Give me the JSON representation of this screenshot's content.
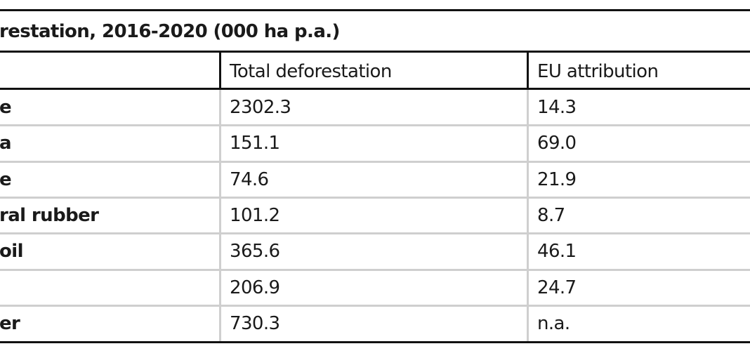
{
  "table": {
    "title": "restation, 2016-2020 (000 ha p.a.)",
    "header": [
      "Total deforestation",
      "EU attribution"
    ],
    "rows": [
      {
        "label": "e",
        "cells": [
          "2302.3",
          "14.3"
        ]
      },
      {
        "label": "a",
        "cells": [
          "151.1",
          "69.0"
        ]
      },
      {
        "label": "e",
        "cells": [
          "74.6",
          "21.9"
        ]
      },
      {
        "label": "ral rubber",
        "cells": [
          "101.2",
          "8.7"
        ]
      },
      {
        "label": "oil",
        "cells": [
          "365.6",
          "46.1"
        ]
      },
      {
        "label": null,
        "cells": [
          "206.9",
          "24.7"
        ]
      },
      {
        "label": "er",
        "cells": [
          "730.3",
          "n.a."
        ]
      }
    ]
  }
}
